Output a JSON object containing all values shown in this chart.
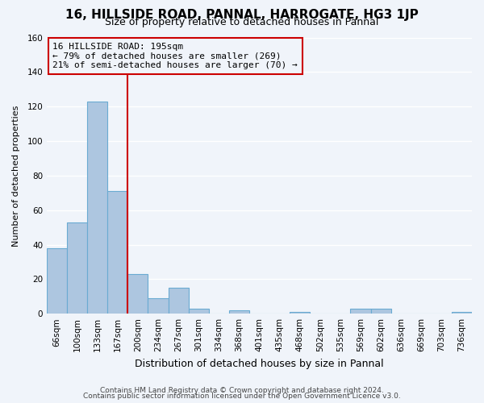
{
  "title": "16, HILLSIDE ROAD, PANNAL, HARROGATE, HG3 1JP",
  "subtitle": "Size of property relative to detached houses in Pannal",
  "xlabel": "Distribution of detached houses by size in Pannal",
  "ylabel": "Number of detached properties",
  "bin_labels": [
    "66sqm",
    "100sqm",
    "133sqm",
    "167sqm",
    "200sqm",
    "234sqm",
    "267sqm",
    "301sqm",
    "334sqm",
    "368sqm",
    "401sqm",
    "435sqm",
    "468sqm",
    "502sqm",
    "535sqm",
    "569sqm",
    "602sqm",
    "636sqm",
    "669sqm",
    "703sqm",
    "736sqm"
  ],
  "bar_heights": [
    38,
    53,
    123,
    71,
    23,
    9,
    15,
    3,
    0,
    2,
    0,
    0,
    1,
    0,
    0,
    3,
    3,
    0,
    0,
    0,
    1
  ],
  "bar_color": "#adc6e0",
  "bar_edge_color": "#6aabd2",
  "vline_x": 4,
  "vline_color": "#cc0000",
  "annotation_line1": "16 HILLSIDE ROAD: 195sqm",
  "annotation_line2": "← 79% of detached houses are smaller (269)",
  "annotation_line3": "21% of semi-detached houses are larger (70) →",
  "annotation_box_edge_color": "#cc0000",
  "ylim": [
    0,
    160
  ],
  "yticks": [
    0,
    20,
    40,
    60,
    80,
    100,
    120,
    140,
    160
  ],
  "footer1": "Contains HM Land Registry data © Crown copyright and database right 2024.",
  "footer2": "Contains public sector information licensed under the Open Government Licence v3.0.",
  "bg_color": "#f0f4fa",
  "grid_color": "#ffffff",
  "title_fontsize": 11,
  "subtitle_fontsize": 9,
  "xlabel_fontsize": 9,
  "ylabel_fontsize": 8,
  "tick_fontsize": 7.5,
  "annotation_fontsize": 8,
  "footer_fontsize": 6.5
}
